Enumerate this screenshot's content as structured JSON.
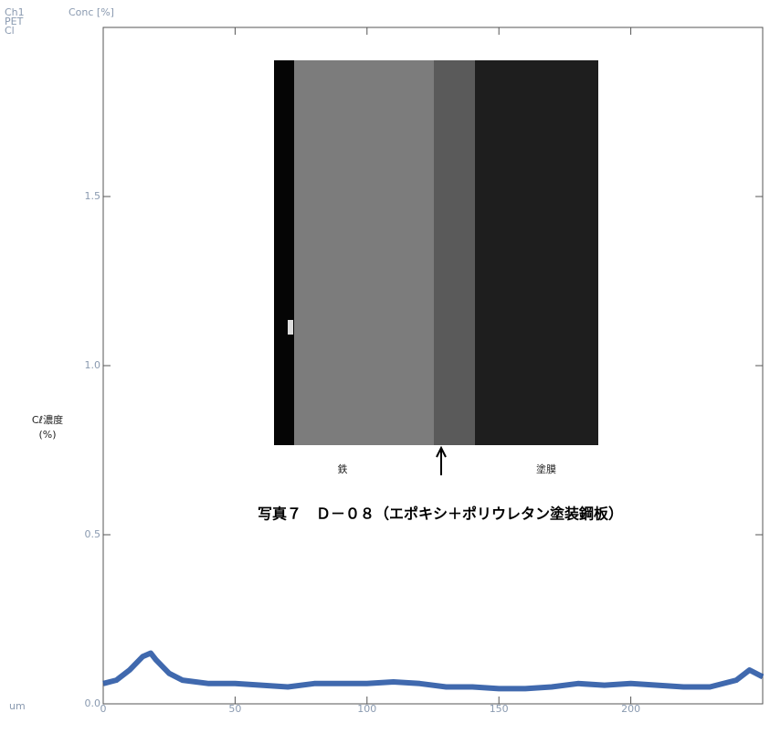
{
  "chart_data": {
    "type": "line",
    "channel_labels": [
      "Ch1",
      "PET",
      "Cl"
    ],
    "y_axis_title": "Conc [%]",
    "y_label": "Cℓ濃度",
    "y_label_unit": "(%)",
    "x_axis_unit": "um",
    "photo_labels": {
      "left": "鉄",
      "right": "塗膜"
    },
    "caption": "写真７　Ｄ－０８（エポキシ＋ポリウレタン塗装鋼板）",
    "x": [
      0,
      5,
      10,
      15,
      18,
      20,
      25,
      30,
      40,
      50,
      60,
      70,
      80,
      90,
      100,
      110,
      120,
      130,
      140,
      150,
      160,
      170,
      180,
      190,
      200,
      210,
      220,
      230,
      240,
      245,
      250
    ],
    "series": [
      {
        "color": "#1f4fa0",
        "values": [
          0.06,
          0.07,
          0.1,
          0.14,
          0.15,
          0.13,
          0.09,
          0.07,
          0.06,
          0.06,
          0.055,
          0.05,
          0.06,
          0.06,
          0.06,
          0.065,
          0.06,
          0.05,
          0.05,
          0.045,
          0.045,
          0.05,
          0.06,
          0.055,
          0.06,
          0.055,
          0.05,
          0.05,
          0.07,
          0.1,
          0.08
        ]
      }
    ],
    "xlim": [
      0,
      250
    ],
    "ylim": [
      0,
      2.0
    ],
    "xticks": [
      0,
      50,
      100,
      150,
      200
    ],
    "yticks": [
      {
        "value": 0,
        "label": "0.0"
      },
      {
        "value": 0.5,
        "label": "0.5"
      },
      {
        "value": 1.0,
        "label": "1.0"
      },
      {
        "value": 1.5,
        "label": "1.5"
      }
    ]
  }
}
